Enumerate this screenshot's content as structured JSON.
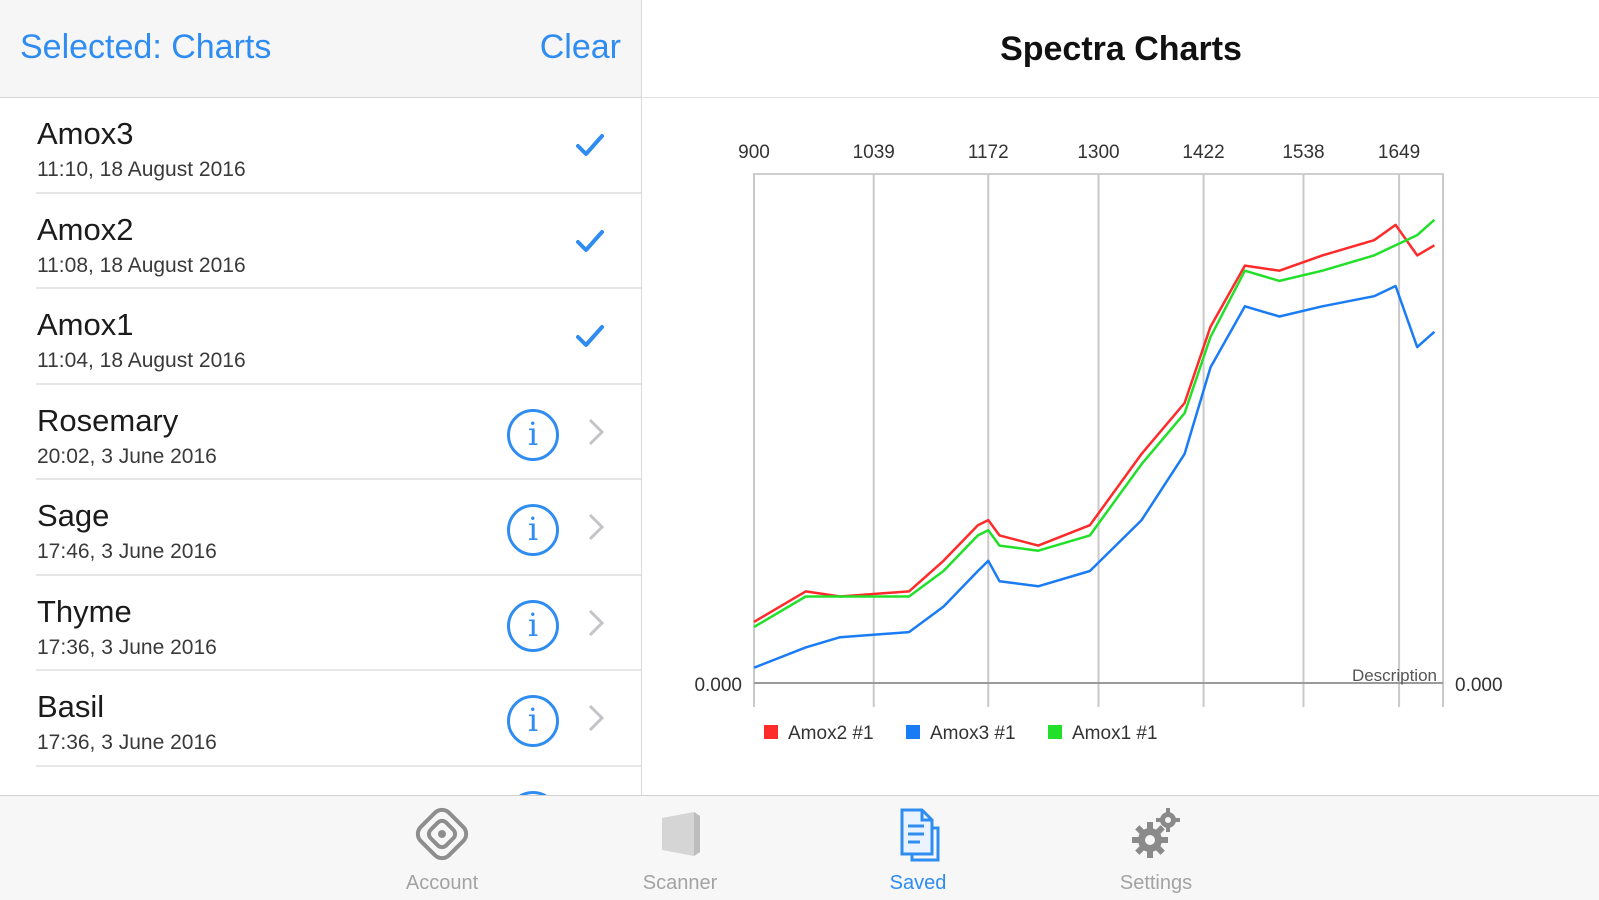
{
  "master": {
    "nav": {
      "left_label": "Selected: Charts",
      "right_label": "Clear"
    },
    "items": [
      {
        "title": "Amox3",
        "date": "11:10, 18 August 2016",
        "accessory": "check"
      },
      {
        "title": "Amox2",
        "date": "11:08, 18 August 2016",
        "accessory": "check"
      },
      {
        "title": "Amox1",
        "date": "11:04, 18 August 2016",
        "accessory": "check"
      },
      {
        "title": "Rosemary",
        "date": "20:02, 3 June 2016",
        "accessory": "info"
      },
      {
        "title": "Sage",
        "date": "17:46, 3 June 2016",
        "accessory": "info"
      },
      {
        "title": "Thyme",
        "date": "17:36, 3 June 2016",
        "accessory": "info"
      },
      {
        "title": "Basil",
        "date": "17:36, 3 June 2016",
        "accessory": "info"
      },
      {
        "title": "",
        "date": "",
        "accessory": "info"
      }
    ]
  },
  "detail": {
    "title": "Spectra Charts"
  },
  "chart_data": {
    "type": "line",
    "top_ticks": [
      "900",
      "1039",
      "1172",
      "1300",
      "1422",
      "1538",
      "1649"
    ],
    "y_left_label": "0.000",
    "y_right_label": "0.000",
    "description_label": "Description",
    "series": [
      {
        "name": "Amox2 #1",
        "color": "#ff2a2a",
        "points": [
          [
            900,
            0.12
          ],
          [
            960,
            0.18
          ],
          [
            1000,
            0.17
          ],
          [
            1080,
            0.18
          ],
          [
            1120,
            0.24
          ],
          [
            1160,
            0.31
          ],
          [
            1172,
            0.32
          ],
          [
            1185,
            0.29
          ],
          [
            1230,
            0.27
          ],
          [
            1290,
            0.31
          ],
          [
            1350,
            0.45
          ],
          [
            1400,
            0.55
          ],
          [
            1430,
            0.7
          ],
          [
            1470,
            0.82
          ],
          [
            1510,
            0.81
          ],
          [
            1560,
            0.84
          ],
          [
            1620,
            0.87
          ],
          [
            1645,
            0.9
          ],
          [
            1670,
            0.84
          ],
          [
            1690,
            0.86
          ]
        ]
      },
      {
        "name": "Amox3 #1",
        "color": "#1a7cf5",
        "points": [
          [
            900,
            0.03
          ],
          [
            960,
            0.07
          ],
          [
            1000,
            0.09
          ],
          [
            1080,
            0.1
          ],
          [
            1120,
            0.15
          ],
          [
            1160,
            0.22
          ],
          [
            1172,
            0.24
          ],
          [
            1185,
            0.2
          ],
          [
            1230,
            0.19
          ],
          [
            1290,
            0.22
          ],
          [
            1350,
            0.32
          ],
          [
            1400,
            0.45
          ],
          [
            1430,
            0.62
          ],
          [
            1470,
            0.74
          ],
          [
            1510,
            0.72
          ],
          [
            1560,
            0.74
          ],
          [
            1620,
            0.76
          ],
          [
            1645,
            0.78
          ],
          [
            1670,
            0.66
          ],
          [
            1690,
            0.69
          ]
        ]
      },
      {
        "name": "Amox1 #1",
        "color": "#22e02a",
        "points": [
          [
            900,
            0.11
          ],
          [
            960,
            0.17
          ],
          [
            1000,
            0.17
          ],
          [
            1080,
            0.17
          ],
          [
            1120,
            0.22
          ],
          [
            1160,
            0.29
          ],
          [
            1172,
            0.3
          ],
          [
            1185,
            0.27
          ],
          [
            1230,
            0.26
          ],
          [
            1290,
            0.29
          ],
          [
            1350,
            0.43
          ],
          [
            1400,
            0.53
          ],
          [
            1430,
            0.68
          ],
          [
            1470,
            0.81
          ],
          [
            1510,
            0.79
          ],
          [
            1560,
            0.81
          ],
          [
            1620,
            0.84
          ],
          [
            1645,
            0.86
          ],
          [
            1670,
            0.88
          ],
          [
            1690,
            0.91
          ]
        ]
      }
    ],
    "legend_position": "bottom-left",
    "grid": true
  },
  "tabbar": {
    "tabs": [
      {
        "label": "Account",
        "icon": "account-icon",
        "active": false
      },
      {
        "label": "Scanner",
        "icon": "scanner-icon",
        "active": false
      },
      {
        "label": "Saved",
        "icon": "saved-icon",
        "active": true
      },
      {
        "label": "Settings",
        "icon": "settings-icon",
        "active": false
      }
    ]
  }
}
